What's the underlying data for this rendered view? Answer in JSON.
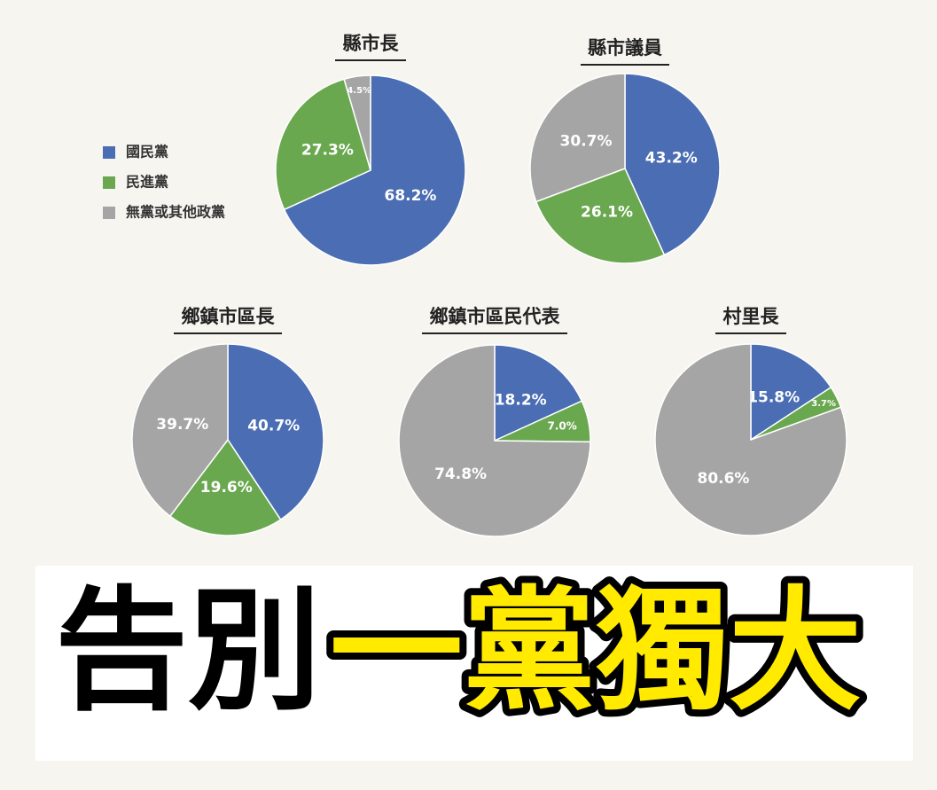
{
  "chart_data": [
    {
      "type": "pie",
      "title": "縣市長",
      "categories": [
        "國民黨",
        "民進黨",
        "無黨或其他政黨"
      ],
      "values": [
        68.2,
        27.3,
        4.5
      ],
      "value_labels": [
        "68.2%",
        "27.3%",
        "4.5%"
      ],
      "colors": [
        "#4a6db3",
        "#6aa84f",
        "#a5a5a5"
      ]
    },
    {
      "type": "pie",
      "title": "縣市議員",
      "categories": [
        "國民黨",
        "民進黨",
        "無黨或其他政黨"
      ],
      "values": [
        43.2,
        26.1,
        30.7
      ],
      "value_labels": [
        "43.2%",
        "26.1%",
        "30.7%"
      ],
      "colors": [
        "#4a6db3",
        "#6aa84f",
        "#a5a5a5"
      ]
    },
    {
      "type": "pie",
      "title": "鄉鎮市區長",
      "categories": [
        "國民黨",
        "民進黨",
        "無黨或其他政黨"
      ],
      "values": [
        40.7,
        19.6,
        39.7
      ],
      "value_labels": [
        "40.7%",
        "19.6%",
        "39.7%"
      ],
      "colors": [
        "#4a6db3",
        "#6aa84f",
        "#a5a5a5"
      ]
    },
    {
      "type": "pie",
      "title": "鄉鎮市區民代表",
      "categories": [
        "國民黨",
        "民進黨",
        "無黨或其他政黨"
      ],
      "values": [
        18.2,
        7.0,
        74.8
      ],
      "value_labels": [
        "18.2%",
        "7.0%",
        "74.8%"
      ],
      "colors": [
        "#4a6db3",
        "#6aa84f",
        "#a5a5a5"
      ]
    },
    {
      "type": "pie",
      "title": "村里長",
      "categories": [
        "國民黨",
        "民進黨",
        "無黨或其他政黨"
      ],
      "values": [
        15.8,
        3.7,
        80.6
      ],
      "value_labels": [
        "15.8%",
        "3.7%",
        "80.6%"
      ],
      "colors": [
        "#4a6db3",
        "#6aa84f",
        "#a5a5a5"
      ]
    }
  ],
  "headline": [
    "告別",
    "一黨獨大"
  ]
}
